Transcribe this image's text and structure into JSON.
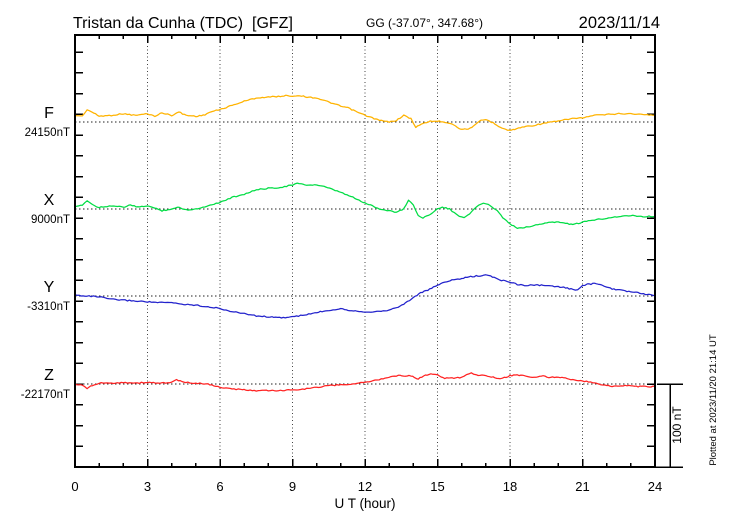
{
  "header": {
    "title": "Tristan da Cunha (TDC)  [GFZ]",
    "coordinates": "GG (-37.07°, 347.68°)",
    "date": "2023/11/14"
  },
  "footer": {
    "xlabel": "U T (hour)"
  },
  "scale_bar": {
    "label": "100 nT",
    "span_nT": 100
  },
  "plotted_at": "Plotted at 2023/11/20 21:14 UT",
  "chart_data": {
    "type": "line",
    "title": "Magnetogram Tristan da Cunha (TDC) [GFZ] — 2023/11/14",
    "xlabel": "U T (hour)",
    "x_range": [
      0,
      24
    ],
    "x_major_ticks": [
      0,
      3,
      6,
      9,
      12,
      15,
      18,
      21,
      24
    ],
    "x_minor_tick_hours": 1,
    "y_tick_spacing_nT": 25,
    "scale_bar_nT": 100,
    "grid": "dotted vertical lines every 3 h; dotted horizontal baseline per component",
    "point_format": "[UT hour, offset from baseline in nT]",
    "series": [
      {
        "name": "F",
        "color": "#FFB300",
        "baseline_nT": 24150,
        "baseline_label": "24150nT",
        "units": "nT",
        "points": [
          [
            0,
            8
          ],
          [
            0.3,
            7
          ],
          [
            0.5,
            15
          ],
          [
            0.7,
            12
          ],
          [
            1,
            7
          ],
          [
            1.5,
            8
          ],
          [
            2,
            10
          ],
          [
            2.5,
            8
          ],
          [
            3,
            10
          ],
          [
            3.3,
            7
          ],
          [
            3.6,
            11
          ],
          [
            4,
            8
          ],
          [
            4.3,
            12
          ],
          [
            4.6,
            8
          ],
          [
            5,
            7
          ],
          [
            5.3,
            8
          ],
          [
            5.6,
            12
          ],
          [
            6,
            15
          ],
          [
            6.5,
            20
          ],
          [
            7,
            25
          ],
          [
            7.5,
            29
          ],
          [
            8,
            30
          ],
          [
            8.5,
            31
          ],
          [
            8.8,
            32
          ],
          [
            9,
            31
          ],
          [
            9.3,
            32
          ],
          [
            9.6,
            30
          ],
          [
            10,
            29
          ],
          [
            10.3,
            26
          ],
          [
            10.6,
            23
          ],
          [
            11,
            19
          ],
          [
            11.3,
            17
          ],
          [
            11.6,
            13
          ],
          [
            12,
            8
          ],
          [
            12.3,
            5
          ],
          [
            12.6,
            2
          ],
          [
            13,
            0
          ],
          [
            13.3,
            2
          ],
          [
            13.6,
            8
          ],
          [
            13.9,
            4
          ],
          [
            14.1,
            -6
          ],
          [
            14.4,
            -2
          ],
          [
            14.7,
            1
          ],
          [
            15,
            1
          ],
          [
            15.3,
            0
          ],
          [
            15.6,
            -2
          ],
          [
            15.9,
            -8
          ],
          [
            16.2,
            -9
          ],
          [
            16.5,
            -5
          ],
          [
            16.8,
            2
          ],
          [
            17,
            3
          ],
          [
            17.3,
            -1
          ],
          [
            17.6,
            -6
          ],
          [
            17.9,
            -10
          ],
          [
            18.2,
            -9
          ],
          [
            18.5,
            -6
          ],
          [
            19,
            -4
          ],
          [
            19.5,
            -1
          ],
          [
            20,
            1
          ],
          [
            20.5,
            4
          ],
          [
            21,
            5
          ],
          [
            21.5,
            8
          ],
          [
            22,
            9
          ],
          [
            22.5,
            10
          ],
          [
            23,
            10
          ],
          [
            23.5,
            9
          ],
          [
            24,
            8
          ]
        ]
      },
      {
        "name": "X",
        "color": "#00DD44",
        "baseline_nT": 9000,
        "baseline_label": "9000nT",
        "units": "nT",
        "points": [
          [
            0,
            2
          ],
          [
            0.3,
            5
          ],
          [
            0.5,
            10
          ],
          [
            0.8,
            4
          ],
          [
            1,
            2
          ],
          [
            1.5,
            4
          ],
          [
            2,
            2
          ],
          [
            2.3,
            5
          ],
          [
            2.6,
            2
          ],
          [
            3,
            4
          ],
          [
            3.3,
            1
          ],
          [
            3.6,
            -2
          ],
          [
            4,
            0
          ],
          [
            4.3,
            2
          ],
          [
            4.6,
            -1
          ],
          [
            5,
            0
          ],
          [
            5.3,
            2
          ],
          [
            5.6,
            5
          ],
          [
            6,
            8
          ],
          [
            6.5,
            14
          ],
          [
            7,
            18
          ],
          [
            7.5,
            23
          ],
          [
            8,
            25
          ],
          [
            8.5,
            26
          ],
          [
            9,
            29
          ],
          [
            9.2,
            31
          ],
          [
            9.5,
            29
          ],
          [
            10,
            29
          ],
          [
            10.3,
            27
          ],
          [
            10.6,
            24
          ],
          [
            11,
            20
          ],
          [
            11.5,
            14
          ],
          [
            12,
            7
          ],
          [
            12.3,
            4
          ],
          [
            12.6,
            0
          ],
          [
            13,
            -2
          ],
          [
            13.3,
            -4
          ],
          [
            13.6,
            0
          ],
          [
            13.8,
            11
          ],
          [
            14,
            5
          ],
          [
            14.2,
            -8
          ],
          [
            14.4,
            -11
          ],
          [
            14.7,
            -6
          ],
          [
            15,
            0
          ],
          [
            15.2,
            2
          ],
          [
            15.5,
            0
          ],
          [
            15.7,
            -5
          ],
          [
            15.9,
            -9
          ],
          [
            16.1,
            -10
          ],
          [
            16.4,
            -4
          ],
          [
            16.7,
            5
          ],
          [
            16.9,
            7
          ],
          [
            17.1,
            5
          ],
          [
            17.4,
            0
          ],
          [
            17.7,
            -10
          ],
          [
            18,
            -18
          ],
          [
            18.3,
            -23
          ],
          [
            18.6,
            -22
          ],
          [
            19,
            -20
          ],
          [
            19.3,
            -18
          ],
          [
            19.6,
            -16
          ],
          [
            20,
            -16
          ],
          [
            20.3,
            -17
          ],
          [
            20.6,
            -19
          ],
          [
            21,
            -16
          ],
          [
            21.5,
            -13
          ],
          [
            22,
            -11
          ],
          [
            22.5,
            -9
          ],
          [
            23,
            -8
          ],
          [
            23.5,
            -9
          ],
          [
            24,
            -9
          ]
        ]
      },
      {
        "name": "Y",
        "color": "#2222CC",
        "baseline_nT": -3310,
        "baseline_label": "-3310nT",
        "units": "nT",
        "points": [
          [
            0,
            1
          ],
          [
            0.5,
            0
          ],
          [
            1,
            -1
          ],
          [
            1.5,
            -4
          ],
          [
            2,
            -5
          ],
          [
            2.5,
            -6
          ],
          [
            3,
            -7
          ],
          [
            3.5,
            -8
          ],
          [
            4,
            -8
          ],
          [
            4.5,
            -10
          ],
          [
            5,
            -11
          ],
          [
            5.5,
            -13
          ],
          [
            6,
            -15
          ],
          [
            6.5,
            -19
          ],
          [
            7,
            -21
          ],
          [
            7.5,
            -24
          ],
          [
            8,
            -25
          ],
          [
            8.3,
            -26
          ],
          [
            8.7,
            -26
          ],
          [
            9,
            -25
          ],
          [
            9.5,
            -23
          ],
          [
            10,
            -20
          ],
          [
            10.3,
            -18
          ],
          [
            10.6,
            -17
          ],
          [
            11,
            -15
          ],
          [
            11.3,
            -17
          ],
          [
            11.6,
            -18
          ],
          [
            12,
            -19
          ],
          [
            12.5,
            -19
          ],
          [
            13,
            -17
          ],
          [
            13.3,
            -14
          ],
          [
            13.6,
            -10
          ],
          [
            14,
            -2
          ],
          [
            14.3,
            4
          ],
          [
            14.6,
            7
          ],
          [
            15,
            13
          ],
          [
            15.3,
            17
          ],
          [
            15.6,
            19
          ],
          [
            16,
            21
          ],
          [
            16.3,
            23
          ],
          [
            16.6,
            24
          ],
          [
            17,
            25
          ],
          [
            17.2,
            24
          ],
          [
            17.5,
            20
          ],
          [
            17.8,
            18
          ],
          [
            18,
            17
          ],
          [
            18.3,
            14
          ],
          [
            18.6,
            13
          ],
          [
            19,
            13
          ],
          [
            19.3,
            13
          ],
          [
            19.6,
            12
          ],
          [
            20,
            11
          ],
          [
            20.3,
            10
          ],
          [
            20.6,
            8
          ],
          [
            20.8,
            7
          ],
          [
            21,
            12
          ],
          [
            21.2,
            14
          ],
          [
            21.5,
            15
          ],
          [
            21.8,
            13
          ],
          [
            22,
            11
          ],
          [
            22.3,
            8
          ],
          [
            22.6,
            7
          ],
          [
            23,
            5
          ],
          [
            23.3,
            4
          ],
          [
            23.6,
            2
          ],
          [
            24,
            1
          ]
        ]
      },
      {
        "name": "Z",
        "color": "#FF2222",
        "baseline_nT": -22170,
        "baseline_label": "-22170nT",
        "units": "nT",
        "points": [
          [
            0,
            0
          ],
          [
            0.3,
            -2
          ],
          [
            0.5,
            -5
          ],
          [
            0.8,
            -1
          ],
          [
            1,
            1
          ],
          [
            1.5,
            1
          ],
          [
            2,
            2
          ],
          [
            2.5,
            1
          ],
          [
            3,
            2
          ],
          [
            3.5,
            1
          ],
          [
            4,
            2
          ],
          [
            4.2,
            5
          ],
          [
            4.5,
            2
          ],
          [
            5,
            1
          ],
          [
            5.5,
            0
          ],
          [
            6,
            -4
          ],
          [
            6.5,
            -6
          ],
          [
            7,
            -7
          ],
          [
            7.5,
            -8
          ],
          [
            8,
            -8
          ],
          [
            8.5,
            -8
          ],
          [
            9,
            -7
          ],
          [
            9.5,
            -6
          ],
          [
            10,
            -4
          ],
          [
            10.5,
            -2
          ],
          [
            11,
            -1
          ],
          [
            11.5,
            0
          ],
          [
            12,
            2
          ],
          [
            12.5,
            5
          ],
          [
            13,
            8
          ],
          [
            13.3,
            10
          ],
          [
            13.6,
            10
          ],
          [
            13.9,
            10
          ],
          [
            14.2,
            6
          ],
          [
            14.5,
            11
          ],
          [
            14.8,
            12
          ],
          [
            15,
            11
          ],
          [
            15.3,
            7
          ],
          [
            15.6,
            7
          ],
          [
            16,
            8
          ],
          [
            16.2,
            12
          ],
          [
            16.4,
            13
          ],
          [
            16.6,
            11
          ],
          [
            17,
            10
          ],
          [
            17.3,
            8
          ],
          [
            17.6,
            6
          ],
          [
            18,
            10
          ],
          [
            18.3,
            11
          ],
          [
            18.6,
            10
          ],
          [
            19,
            8
          ],
          [
            19.3,
            10
          ],
          [
            19.6,
            8
          ],
          [
            20,
            8
          ],
          [
            20.3,
            7
          ],
          [
            20.6,
            5
          ],
          [
            21,
            4
          ],
          [
            21.5,
            1
          ],
          [
            22,
            -2
          ],
          [
            22.3,
            -3
          ],
          [
            22.6,
            -2
          ],
          [
            23,
            -2
          ],
          [
            23.3,
            -3
          ],
          [
            23.6,
            -3
          ],
          [
            24,
            -3
          ]
        ]
      }
    ]
  }
}
